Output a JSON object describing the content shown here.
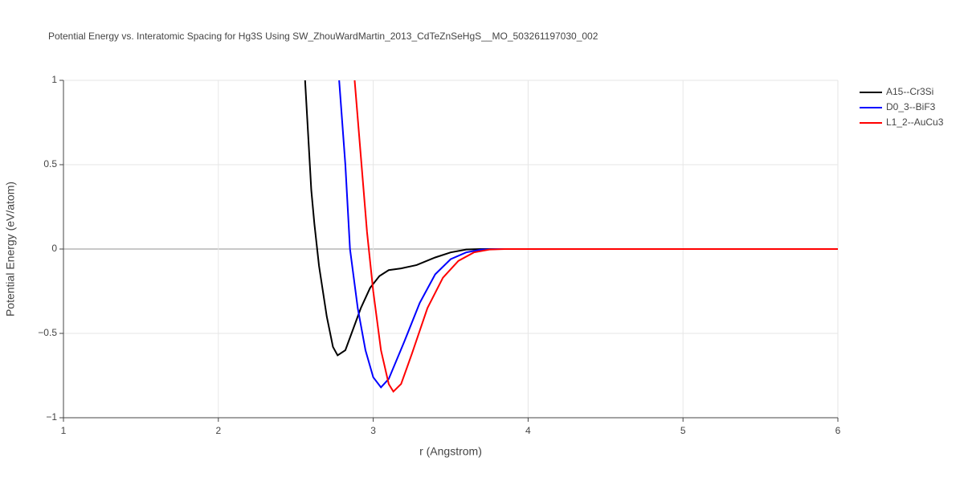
{
  "chart_data": {
    "type": "line",
    "title": "Potential Energy vs. Interatomic Spacing for Hg3S Using SW_ZhouWardMartin_2013_CdTeZnSeHgS__MO_503261197030_002",
    "xlabel": "r (Angstrom)",
    "ylabel": "Potential Energy (eV/atom)",
    "xlim": [
      1,
      6
    ],
    "ylim": [
      -1,
      1
    ],
    "xticks": [
      1,
      2,
      3,
      4,
      5,
      6
    ],
    "yticks": [
      {
        "value": -1,
        "label": "−1"
      },
      {
        "value": -0.5,
        "label": "−0.5"
      },
      0,
      0.5,
      1
    ],
    "grid": true,
    "legend": "right",
    "series": [
      {
        "name": "A15--Cr3Si",
        "color": "#000000",
        "x": [
          2.56,
          2.6,
          2.62,
          2.65,
          2.7,
          2.74,
          2.77,
          2.82,
          2.86,
          2.92,
          2.98,
          3.04,
          3.1,
          3.18,
          3.28,
          3.4,
          3.5,
          3.6,
          3.7,
          6
        ],
        "values": [
          1.0,
          0.35,
          0.15,
          -0.1,
          -0.4,
          -0.58,
          -0.63,
          -0.6,
          -0.5,
          -0.35,
          -0.23,
          -0.16,
          -0.125,
          -0.115,
          -0.095,
          -0.05,
          -0.02,
          -0.003,
          0,
          0
        ]
      },
      {
        "name": "D0_3--BiF3",
        "color": "#0000ff",
        "x": [
          2.78,
          2.82,
          2.85,
          2.9,
          2.95,
          3.0,
          3.05,
          3.1,
          3.2,
          3.3,
          3.4,
          3.5,
          3.6,
          3.7,
          3.8,
          6
        ],
        "values": [
          1.0,
          0.5,
          0.0,
          -0.35,
          -0.6,
          -0.76,
          -0.82,
          -0.77,
          -0.55,
          -0.32,
          -0.15,
          -0.06,
          -0.02,
          -0.003,
          0,
          0
        ]
      },
      {
        "name": "L1_2--AuCu3",
        "color": "#ff0000",
        "x": [
          2.88,
          2.92,
          2.96,
          3.0,
          3.05,
          3.1,
          3.13,
          3.18,
          3.25,
          3.35,
          3.45,
          3.55,
          3.65,
          3.75,
          3.85,
          6
        ],
        "values": [
          1.0,
          0.55,
          0.1,
          -0.25,
          -0.6,
          -0.8,
          -0.845,
          -0.8,
          -0.62,
          -0.35,
          -0.17,
          -0.07,
          -0.02,
          -0.003,
          0,
          0
        ]
      }
    ]
  }
}
